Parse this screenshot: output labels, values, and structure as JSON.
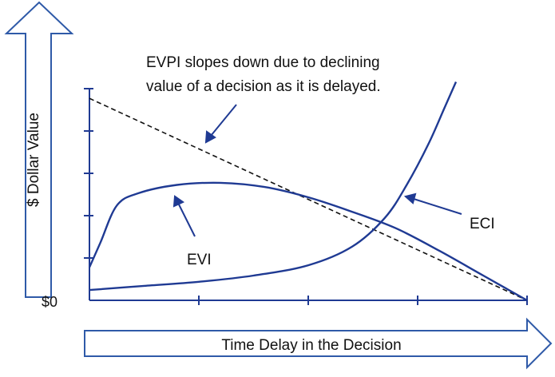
{
  "chart_data": {
    "type": "line",
    "xlabel": "Time Delay in the Decision",
    "ylabel": "$ Dollar Value",
    "y_origin_label": "$0",
    "x_ticks": 4,
    "y_ticks": 5,
    "xlim": [
      0,
      4
    ],
    "ylim": [
      0,
      5
    ],
    "series": [
      {
        "name": "EVPI",
        "style": "dashed",
        "points": [
          [
            0,
            4.9
          ],
          [
            4,
            0
          ]
        ]
      },
      {
        "name": "EVI",
        "style": "solid",
        "points": [
          [
            0,
            0.8
          ],
          [
            0.1,
            1.4
          ],
          [
            0.25,
            2.3
          ],
          [
            0.45,
            2.6
          ],
          [
            0.8,
            2.8
          ],
          [
            1.2,
            2.85
          ],
          [
            1.6,
            2.75
          ],
          [
            2.0,
            2.5
          ],
          [
            2.4,
            2.15
          ],
          [
            2.8,
            1.75
          ],
          [
            3.2,
            1.2
          ],
          [
            3.6,
            0.6
          ],
          [
            4,
            0
          ]
        ]
      },
      {
        "name": "ECI",
        "style": "solid",
        "points": [
          [
            0,
            0.25
          ],
          [
            0.5,
            0.35
          ],
          [
            1.0,
            0.45
          ],
          [
            1.5,
            0.6
          ],
          [
            2.0,
            0.85
          ],
          [
            2.4,
            1.3
          ],
          [
            2.7,
            2.0
          ],
          [
            2.9,
            2.8
          ],
          [
            3.1,
            3.8
          ],
          [
            3.25,
            4.7
          ],
          [
            3.35,
            5.3
          ]
        ]
      }
    ],
    "annotations": [
      "EVPI slopes down due to declining",
      "value of a decision as it is delayed.",
      "EVI",
      "ECI"
    ]
  },
  "colors": {
    "curve": "#1f3a93",
    "dashed": "#111111",
    "arrow_outline": "#2f5aa8",
    "axis": "#1f3a93"
  }
}
